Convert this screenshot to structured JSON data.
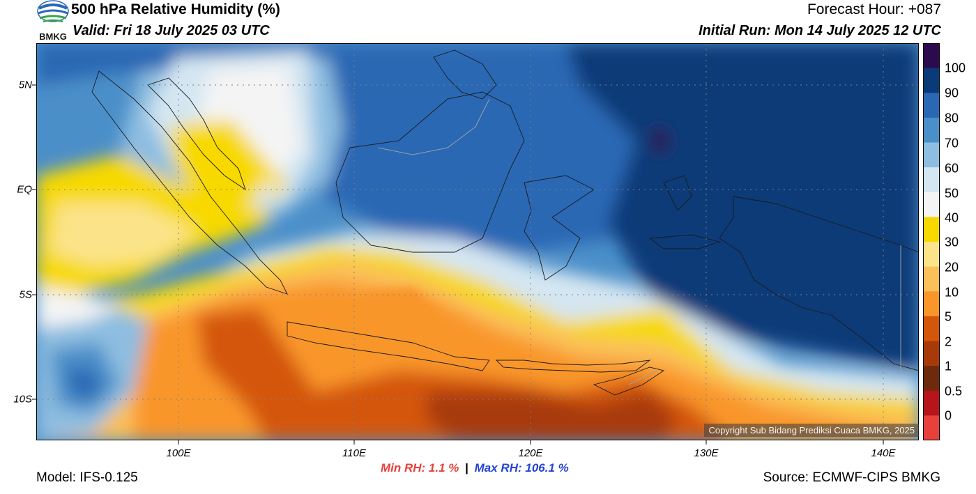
{
  "header": {
    "title": "500 hPa Relative Humidity (%)",
    "valid": "Valid: Fri 18 July 2025 03 UTC",
    "forecast_hour": "Forecast Hour: +087",
    "initial_run": "Initial Run: Mon 14 July 2025 12 UTC",
    "logo_text": "BMKG"
  },
  "axes": {
    "lat_labels": [
      "5N",
      "EQ",
      "5S",
      "10S"
    ],
    "lon_labels": [
      "100E",
      "110E",
      "120E",
      "130E",
      "140E"
    ]
  },
  "colorbar": {
    "labels": [
      "100",
      "90",
      "80",
      "70",
      "60",
      "50",
      "40",
      "30",
      "20",
      "10",
      "5",
      "2",
      "1",
      "0.5",
      "0"
    ],
    "colors": [
      "#2d0a4e",
      "#0b3a78",
      "#2a68b4",
      "#4b8fc9",
      "#8dbde0",
      "#d4e6f2",
      "#f4f4f4",
      "#f7d900",
      "#fbe38a",
      "#fac05a",
      "#f9962a",
      "#d4560a",
      "#a83a0a",
      "#6e2a0c",
      "#b5151b",
      "#e8413c"
    ]
  },
  "stats": {
    "min_rh": "Min RH:   1.1 %",
    "separator": "|",
    "max_rh": "Max RH: 106.1 %"
  },
  "footer": {
    "model": "Model: IFS-0.125",
    "source": "Source: ECMWF-CIPS BMKG",
    "copyright": "Copyright Sub Bidang Prediksi Cuaca BMKG, 2025"
  }
}
